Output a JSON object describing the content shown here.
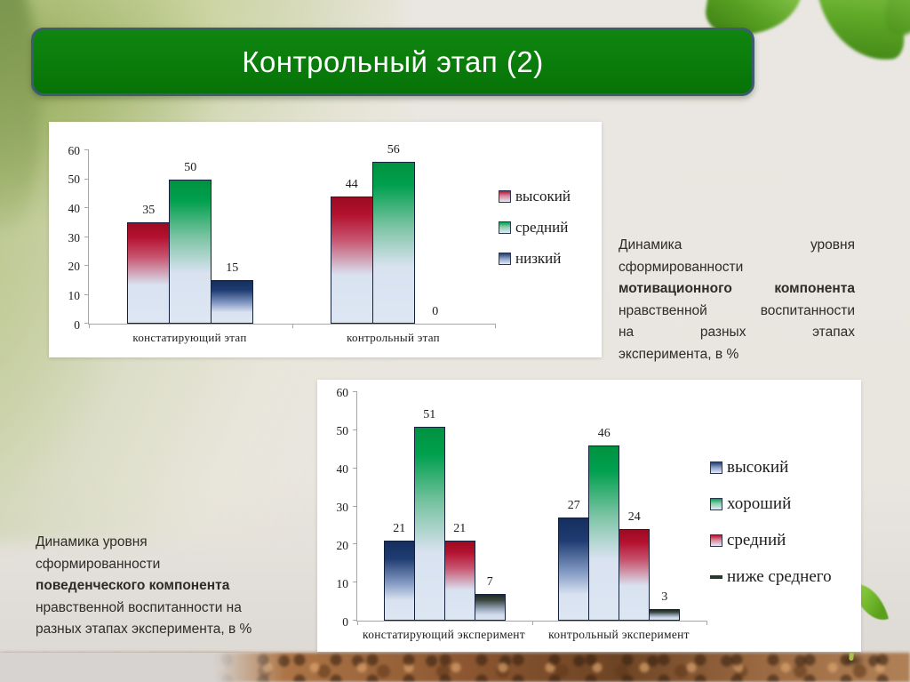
{
  "slide_title": "Контрольный этап (2)",
  "palette": {
    "red": "#b41230",
    "green": "#00a04e",
    "navy": "#1f3c72",
    "dark": "#2b362f",
    "bar_fade": "#dde6f3",
    "title_bg": "#0a7c0b",
    "title_border": "#3e5b72",
    "axis": "#a6a6a6"
  },
  "chart_data": [
    {
      "type": "bar",
      "title": "Динамика уровня сформированности мотивационного компонента нравственной воспитанности на разных этапах эксперимента, в %",
      "categories": [
        "констатирующий этап",
        "контрольный этап"
      ],
      "series": [
        {
          "name": "высокий",
          "values": [
            35,
            44
          ],
          "color": "#b41230",
          "color_class": "red",
          "legend_marker": "square"
        },
        {
          "name": "средний",
          "values": [
            50,
            56
          ],
          "color": "#00a04e",
          "color_class": "green",
          "legend_marker": "square"
        },
        {
          "name": "низкий",
          "values": [
            15,
            0
          ],
          "color": "#1f3c72",
          "color_class": "navy",
          "legend_marker": "square"
        }
      ],
      "ylim": [
        0,
        60
      ],
      "ytick_step": 10,
      "grid": false,
      "legend_position": "right",
      "xlabel": "",
      "ylabel": ""
    },
    {
      "type": "bar",
      "title": "Динамика уровня сформированности поведенческого компонента нравственной воспитанности на разных этапах эксперимента, в %",
      "categories": [
        "констатирующий эксперимент",
        "контрольный эксперимент"
      ],
      "series": [
        {
          "name": "высокий",
          "values": [
            21,
            27
          ],
          "color": "#1f3c72",
          "color_class": "navy",
          "legend_marker": "square"
        },
        {
          "name": "хороший",
          "values": [
            51,
            46
          ],
          "color": "#00a04e",
          "color_class": "green",
          "legend_marker": "square"
        },
        {
          "name": "средний",
          "values": [
            21,
            24
          ],
          "color": "#b41230",
          "color_class": "red",
          "legend_marker": "square"
        },
        {
          "name": "ниже среднего",
          "values": [
            7,
            3
          ],
          "color": "#2b362f",
          "color_class": "dark",
          "legend_marker": "dash"
        }
      ],
      "ylim": [
        0,
        60
      ],
      "ytick_step": 10,
      "grid": false,
      "legend_position": "right",
      "xlabel": "",
      "ylabel": ""
    }
  ],
  "captions": {
    "caption_right": {
      "lines": [
        {
          "text": "Динамика уровня",
          "bold": false,
          "justify": true
        },
        {
          "text": "сформированности",
          "bold": false,
          "justify": false
        },
        {
          "text": "мотивационного компонента",
          "bold": true,
          "justify": true
        },
        {
          "text": "нравственной воспитанности",
          "bold": false,
          "justify": true
        },
        {
          "text": "на разных этапах",
          "bold": false,
          "justify": true
        },
        {
          "text": "эксперимента, в %",
          "bold": false,
          "justify": false
        }
      ]
    },
    "caption_left": {
      "lines": [
        {
          "text": "Динамика уровня",
          "bold": false,
          "justify": false
        },
        {
          "text": "сформированности",
          "bold": false,
          "justify": false
        },
        {
          "text": "поведенческого компонента",
          "bold": true,
          "justify": false
        },
        {
          "text": "нравственной воспитанности на",
          "bold": false,
          "justify": false
        },
        {
          "text": "разных этапах эксперимента, в %",
          "bold": false,
          "justify": false
        }
      ]
    }
  }
}
